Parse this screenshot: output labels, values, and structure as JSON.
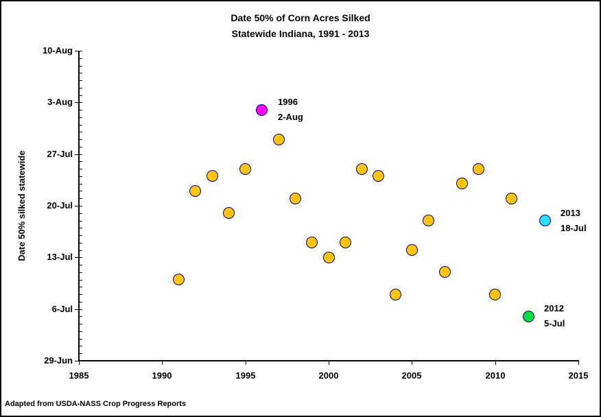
{
  "source_note": "Adapted from USDA-NASS Crop Progress Reports",
  "chart_data": {
    "type": "scatter",
    "title": "Date 50% of Corn Acres Silked",
    "subtitle": "Statewide Indiana, 1991 - 2013",
    "xlabel": "",
    "ylabel": "Date 50% silked statewide",
    "grid": false,
    "legend": "none",
    "xlim": [
      1985,
      2015
    ],
    "x_ticks": [
      1985,
      1990,
      1995,
      2000,
      2005,
      2010,
      2015
    ],
    "y_axis_unit": "days after 29-Jun",
    "ylim": [
      0,
      42
    ],
    "y_major_ticks": [
      {
        "value": 42,
        "label": "10-Aug"
      },
      {
        "value": 35,
        "label": "3-Aug"
      },
      {
        "value": 28,
        "label": "27-Jul"
      },
      {
        "value": 21,
        "label": "20-Jul"
      },
      {
        "value": 14,
        "label": "13-Jul"
      },
      {
        "value": 7,
        "label": "6-Jul"
      },
      {
        "value": 0,
        "label": "29-Jun"
      }
    ],
    "y_minor_step": 1,
    "colors": {
      "default_point": "#FFC40C",
      "point_outline": "#000080",
      "highlight_1996": "#FF00FF",
      "highlight_2012": "#00DD3C",
      "highlight_2013": "#2EDFF7"
    },
    "points": [
      {
        "year": 1991,
        "date": "10-Jul",
        "value": 11
      },
      {
        "year": 1992,
        "date": "22-Jul",
        "value": 23
      },
      {
        "year": 1993,
        "date": "24-Jul",
        "value": 25
      },
      {
        "year": 1994,
        "date": "19-Jul",
        "value": 20
      },
      {
        "year": 1995,
        "date": "25-Jul",
        "value": 26
      },
      {
        "year": 1996,
        "date": "2-Aug",
        "value": 34,
        "color": "#FF00FF",
        "annotation": [
          "1996",
          "2-Aug"
        ]
      },
      {
        "year": 1997,
        "date": "29-Jul",
        "value": 30
      },
      {
        "year": 1998,
        "date": "21-Jul",
        "value": 22
      },
      {
        "year": 1999,
        "date": "15-Jul",
        "value": 16
      },
      {
        "year": 2000,
        "date": "13-Jul",
        "value": 14
      },
      {
        "year": 2001,
        "date": "15-Jul",
        "value": 16
      },
      {
        "year": 2002,
        "date": "25-Jul",
        "value": 26
      },
      {
        "year": 2003,
        "date": "24-Jul",
        "value": 25
      },
      {
        "year": 2004,
        "date": "8-Jul",
        "value": 9
      },
      {
        "year": 2005,
        "date": "14-Jul",
        "value": 15
      },
      {
        "year": 2006,
        "date": "18-Jul",
        "value": 19
      },
      {
        "year": 2007,
        "date": "11-Jul",
        "value": 12
      },
      {
        "year": 2008,
        "date": "23-Jul",
        "value": 24
      },
      {
        "year": 2009,
        "date": "25-Jul",
        "value": 26
      },
      {
        "year": 2010,
        "date": "8-Jul",
        "value": 9
      },
      {
        "year": 2011,
        "date": "21-Jul",
        "value": 22
      },
      {
        "year": 2012,
        "date": "5-Jul",
        "value": 6,
        "color": "#00DD3C",
        "annotation": [
          "2012",
          "5-Jul"
        ]
      },
      {
        "year": 2013,
        "date": "18-Jul",
        "value": 19,
        "color": "#2EDFF7",
        "annotation": [
          "2013",
          "18-Jul"
        ]
      }
    ]
  }
}
